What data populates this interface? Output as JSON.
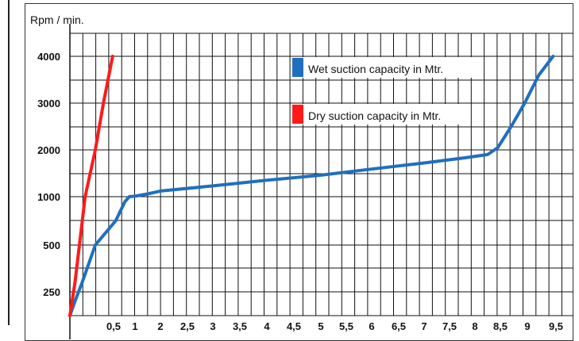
{
  "chart_data": {
    "type": "line",
    "title": "",
    "ylabel": "Rpm / min.",
    "xlabel": "",
    "y_ticks": [
      "4000",
      "3000",
      "2000",
      "1000",
      "500",
      "250"
    ],
    "x_ticks": [
      "0,5",
      "1",
      "2",
      "2,5",
      "3",
      "3,5",
      "4",
      "4,5",
      "5",
      "5,5",
      "6",
      "6,5",
      "7",
      "7,5",
      "8",
      "8,5",
      "9",
      "9,5"
    ],
    "grid": true,
    "legend_position": "top-right",
    "legend": [
      {
        "label": "Wet suction capacity in Mtr.",
        "color": "#1f6fbf"
      },
      {
        "label": "Dry suction capacity in Mtr.",
        "color": "#ff1a1a"
      }
    ],
    "series": [
      {
        "name": "Wet suction capacity in Mtr.",
        "color": "#1f6fbf",
        "points": [
          [
            0.0,
            0
          ],
          [
            0.05,
            150
          ],
          [
            0.12,
            300
          ],
          [
            0.25,
            500
          ],
          [
            0.45,
            750
          ],
          [
            0.65,
            950
          ],
          [
            0.8,
            1000
          ],
          [
            1.0,
            1010
          ],
          [
            1.5,
            1060
          ],
          [
            2.0,
            1120
          ],
          [
            3.0,
            1230
          ],
          [
            4.0,
            1350
          ],
          [
            5.0,
            1460
          ],
          [
            6.0,
            1590
          ],
          [
            7.0,
            1720
          ],
          [
            7.8,
            1830
          ],
          [
            8.25,
            1900
          ],
          [
            8.45,
            2050
          ],
          [
            8.7,
            2500
          ],
          [
            8.95,
            3000
          ],
          [
            9.2,
            3600
          ],
          [
            9.45,
            4000
          ]
        ]
      },
      {
        "name": "Dry suction capacity in Mtr.",
        "color": "#ff1a1a",
        "points": [
          [
            0.0,
            0
          ],
          [
            0.05,
            300
          ],
          [
            0.15,
            1000
          ],
          [
            0.25,
            2000
          ],
          [
            0.33,
            3000
          ],
          [
            0.42,
            4000
          ]
        ]
      }
    ]
  }
}
